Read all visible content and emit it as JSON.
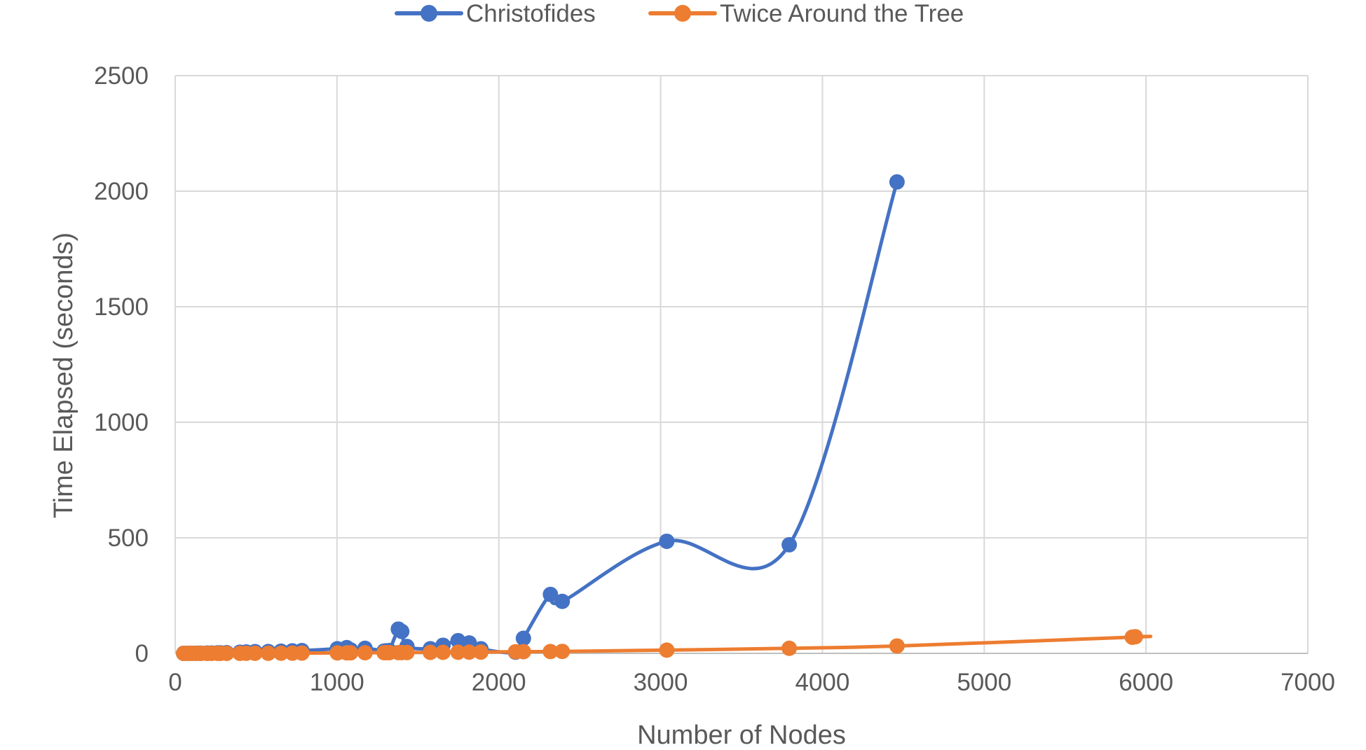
{
  "chart_data": {
    "type": "scatter",
    "title": "",
    "xlabel": "Number of Nodes",
    "ylabel": "Time Elapsed (seconds)",
    "xlim": [
      0,
      7000
    ],
    "ylim": [
      0,
      2500
    ],
    "x_ticks": [
      0,
      1000,
      2000,
      3000,
      4000,
      5000,
      6000,
      7000
    ],
    "y_ticks": [
      0,
      500,
      1000,
      1500,
      2000,
      2500
    ],
    "x_tick_labels": [
      "0",
      "1000",
      "2000",
      "3000",
      "4000",
      "5000",
      "6000",
      "7000"
    ],
    "y_tick_labels": [
      "0",
      "500",
      "1000",
      "1500",
      "2000",
      "2500"
    ],
    "grid": true,
    "smooth_lines": true,
    "legend_position": "top",
    "series": [
      {
        "name": "Christofides",
        "color": "#4472C4",
        "x": [
          52,
          76,
          100,
          105,
          130,
          150,
          159,
          195,
          200,
          225,
          262,
          280,
          318,
          400,
          439,
          493,
          575,
          654,
          724,
          783,
          1002,
          1060,
          1084,
          1173,
          1291,
          1304,
          1323,
          1379,
          1400,
          1432,
          1577,
          1655,
          1748,
          1817,
          1889,
          2103,
          2152,
          2319,
          2392,
          3038,
          3795,
          4461
        ],
        "y": [
          0.1,
          0.2,
          0.3,
          0.4,
          0.6,
          0.8,
          0.9,
          1.2,
          1.3,
          1.6,
          2.1,
          2.4,
          3.0,
          5.0,
          6.1,
          7.5,
          8.0,
          9.5,
          11.0,
          12.0,
          20.0,
          25.0,
          15.0,
          22.0,
          10.0,
          11.0,
          12.0,
          105.0,
          95.0,
          30.0,
          20.0,
          35.0,
          55.0,
          45.0,
          20.0,
          5.0,
          65.0,
          255.0,
          225.0,
          485.0,
          470.0,
          2040.0
        ]
      },
      {
        "name": "Twice Around the Tree",
        "color": "#ED7D31",
        "x": [
          52,
          76,
          100,
          105,
          130,
          150,
          159,
          195,
          200,
          225,
          262,
          280,
          318,
          400,
          439,
          493,
          575,
          654,
          724,
          783,
          1002,
          1060,
          1084,
          1173,
          1291,
          1304,
          1323,
          1379,
          1400,
          1432,
          1577,
          1655,
          1748,
          1817,
          1889,
          2103,
          2152,
          2319,
          2392,
          3038,
          3795,
          4461,
          5915,
          5934
        ],
        "y": [
          0.01,
          0.01,
          0.02,
          0.02,
          0.03,
          0.04,
          0.04,
          0.06,
          0.06,
          0.08,
          0.1,
          0.12,
          0.15,
          0.3,
          0.35,
          0.45,
          0.6,
          0.8,
          1.0,
          1.2,
          2.0,
          2.2,
          2.3,
          2.6,
          3.0,
          3.1,
          3.2,
          3.4,
          3.5,
          3.6,
          4.2,
          4.5,
          5.0,
          5.3,
          5.6,
          7.0,
          7.2,
          8.0,
          8.5,
          14.0,
          22.0,
          32.0,
          70.0,
          72.0
        ]
      }
    ]
  }
}
